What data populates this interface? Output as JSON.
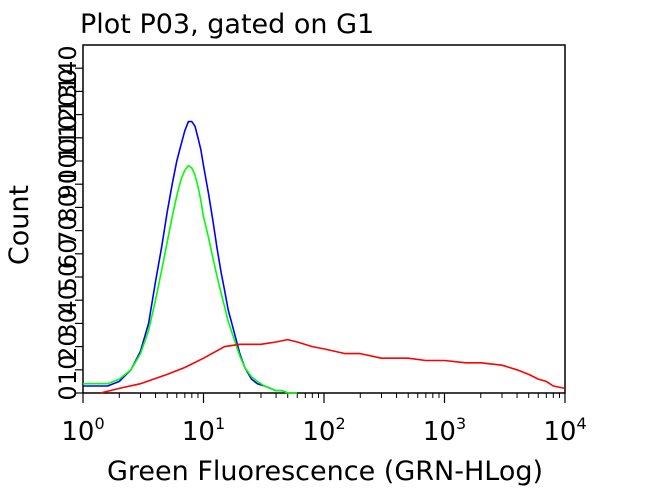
{
  "chart_data": {
    "type": "line",
    "title": "Plot P03, gated on G1",
    "xlabel": "Green Fluorescence (GRN-HLog)",
    "ylabel": "Count",
    "x_scale": "log",
    "xlim": [
      1,
      10000
    ],
    "ylim": [
      0,
      150
    ],
    "x_ticks": [
      {
        "value": 1,
        "base": "10",
        "exp": "0"
      },
      {
        "value": 10,
        "base": "10",
        "exp": "1"
      },
      {
        "value": 100,
        "base": "10",
        "exp": "2"
      },
      {
        "value": 1000,
        "base": "10",
        "exp": "3"
      },
      {
        "value": 10000,
        "base": "10",
        "exp": "4"
      }
    ],
    "y_ticks": [
      {
        "value": 0,
        "label": "0"
      },
      {
        "value": 10,
        "label": "10"
      },
      {
        "value": 20,
        "label": "20"
      },
      {
        "value": 30,
        "label": "30"
      },
      {
        "value": 40,
        "label": "40"
      },
      {
        "value": 50,
        "label": "50"
      },
      {
        "value": 60,
        "label": "60"
      },
      {
        "value": 70,
        "label": "70"
      },
      {
        "value": 80,
        "label": "80"
      },
      {
        "value": 90,
        "label": "90"
      },
      {
        "value": 100,
        "label": "100"
      },
      {
        "value": 110,
        "label": "110"
      },
      {
        "value": 120,
        "label": "120"
      },
      {
        "value": 130,
        "label": "130"
      },
      {
        "value": 140,
        "label": "140"
      }
    ],
    "series": [
      {
        "color": "#0000ff",
        "x": [
          1,
          1.3,
          1.6,
          2,
          2.5,
          3,
          3.5,
          4,
          4.5,
          5,
          5.5,
          6,
          6.5,
          7,
          7.5,
          8,
          8.5,
          9,
          9.5,
          10,
          11,
          12,
          13,
          14,
          15,
          16,
          18,
          20,
          22,
          25,
          28,
          32,
          36,
          40,
          45,
          50
        ],
        "y": [
          3,
          3,
          3,
          5,
          10,
          18,
          30,
          48,
          63,
          78,
          90,
          100,
          107,
          113,
          117,
          117,
          115,
          110,
          105,
          98,
          86,
          74,
          62,
          52,
          44,
          36,
          26,
          17,
          11,
          6,
          4,
          3,
          2,
          1,
          1,
          0
        ]
      },
      {
        "color": "#00ff00",
        "x": [
          1,
          1.3,
          1.6,
          2,
          2.5,
          3,
          3.5,
          4,
          4.5,
          5,
          5.5,
          6,
          6.5,
          7,
          7.5,
          8,
          8.5,
          9,
          9.5,
          10,
          11,
          12,
          13,
          14,
          15,
          16,
          18,
          20,
          22,
          25,
          28,
          32,
          36,
          40,
          45,
          50,
          60
        ],
        "y": [
          4,
          4,
          4,
          6,
          10,
          17,
          27,
          40,
          53,
          65,
          76,
          85,
          92,
          96,
          98,
          97,
          94,
          89,
          83,
          76,
          67,
          58,
          50,
          43,
          37,
          31,
          23,
          16,
          11,
          7,
          5,
          3,
          2,
          1,
          1,
          0,
          0
        ]
      },
      {
        "color": "#ff0000",
        "x": [
          1.4,
          2,
          3,
          5,
          7,
          10,
          15,
          20,
          30,
          40,
          50,
          60,
          80,
          100,
          150,
          200,
          300,
          500,
          700,
          1000,
          1500,
          2000,
          3000,
          4000,
          5000,
          6000,
          7000,
          8000,
          10000
        ],
        "y": [
          0,
          2,
          4,
          8,
          11,
          15,
          20,
          21,
          21,
          22,
          23,
          22,
          20,
          19,
          17,
          17,
          15,
          15,
          14,
          14,
          13,
          13,
          12,
          10,
          8,
          6,
          5,
          3,
          2
        ]
      }
    ],
    "grid": false,
    "legend": "none"
  }
}
